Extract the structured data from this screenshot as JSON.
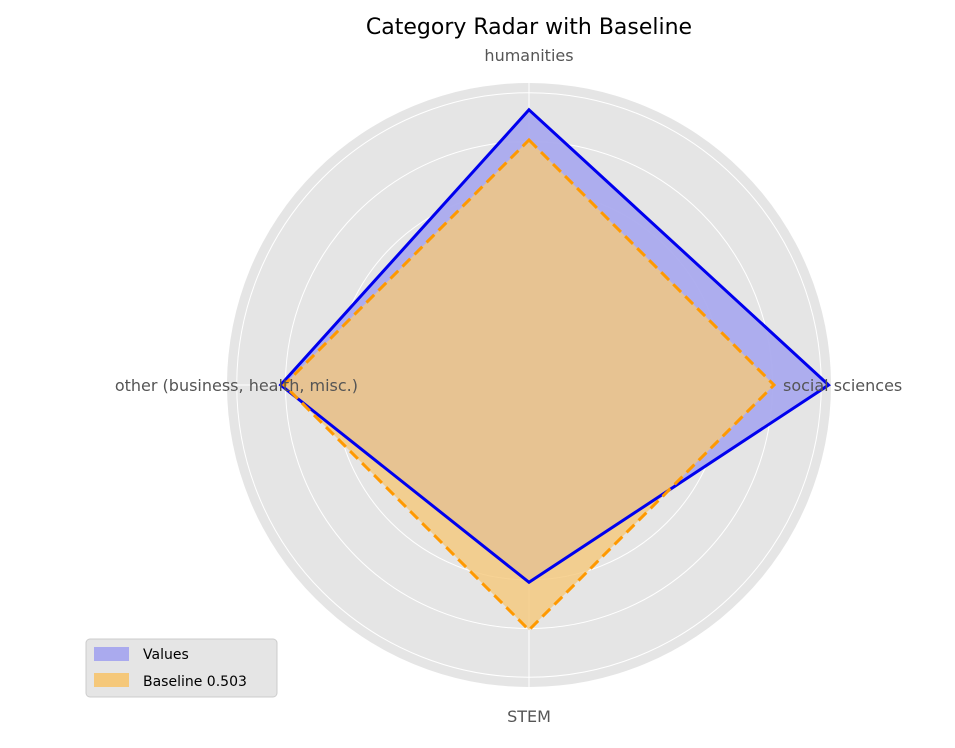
{
  "chart_data": {
    "type": "radar",
    "title": "Category Radar with Baseline",
    "categories": [
      "humanities",
      "social sciences",
      "STEM",
      "other (business, health, misc.)"
    ],
    "rlim": [
      0,
      0.62
    ],
    "grid": true,
    "legend_position": "lower-left",
    "series": [
      {
        "name": "Values",
        "values": [
          0.565,
          0.615,
          0.405,
          0.51
        ],
        "fill": "#aaaaee",
        "line": "#0000ee",
        "line_style": "solid"
      },
      {
        "name": "Baseline 0.503",
        "values": [
          0.503,
          0.503,
          0.503,
          0.503
        ],
        "fill": "#f5c87a",
        "line": "#ff9900",
        "line_style": "dashed"
      }
    ]
  },
  "colors": {
    "plot_background": "#e5e5e5",
    "grid": "#ffffff"
  }
}
